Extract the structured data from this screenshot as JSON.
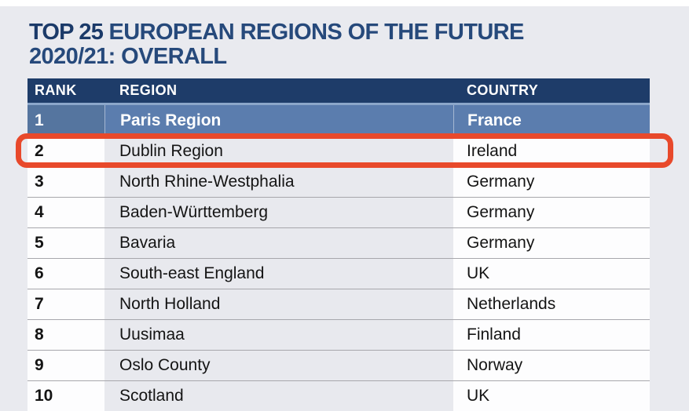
{
  "title": {
    "bold": "TOP 25",
    "line1_rest": " EUROPEAN REGIONS OF THE FUTURE",
    "line2": "2020/21: OVERALL",
    "full": "TOP 25 EUROPEAN REGIONS OF THE FUTURE 2020/21: OVERALL"
  },
  "table": {
    "headers": {
      "rank": "RANK",
      "region": "REGION",
      "country": "COUNTRY"
    },
    "rows": [
      {
        "rank": "1",
        "region": "Paris Region",
        "country": "France"
      },
      {
        "rank": "2",
        "region": "Dublin Region",
        "country": "Ireland"
      },
      {
        "rank": "3",
        "region": "North Rhine-Westphalia",
        "country": "Germany"
      },
      {
        "rank": "4",
        "region": "Baden-Württemberg",
        "country": "Germany"
      },
      {
        "rank": "5",
        "region": "Bavaria",
        "country": "Germany"
      },
      {
        "rank": "6",
        "region": "South-east England",
        "country": "UK"
      },
      {
        "rank": "7",
        "region": "North Holland",
        "country": "Netherlands"
      },
      {
        "rank": "8",
        "region": "Uusimaa",
        "country": "Finland"
      },
      {
        "rank": "9",
        "region": "Oslo County",
        "country": "Norway"
      },
      {
        "rank": "10",
        "region": "Scotland",
        "country": "UK"
      }
    ]
  },
  "highlight": {
    "shape": "rounded-rectangle",
    "highlighted_rank": "2",
    "highlighted_region": "Dublin Region",
    "highlighted_country": "Ireland"
  },
  "colors": {
    "page-bg": "#e9eaef",
    "top-strip": "#ffffff",
    "title-navy": "#26497b",
    "title-bold-navy": "#1b3a69",
    "header-bg": "#1e3c69",
    "header-divider": "#8ba6ca",
    "top-row-bg": "#5b7dae",
    "top-row-rank-bg": "#55759f",
    "row-bg": "#fdfdfe",
    "region-col-bg": "#e8e9ee",
    "separator": "#a7a7ac",
    "text": "#141414",
    "highlight-red": "#e8492b"
  },
  "chart_data": {
    "type": "table",
    "title": "TOP 25 EUROPEAN REGIONS OF THE FUTURE 2020/21: OVERALL",
    "columns": [
      "RANK",
      "REGION",
      "COUNTRY"
    ],
    "rows": [
      [
        1,
        "Paris Region",
        "France"
      ],
      [
        2,
        "Dublin Region",
        "Ireland"
      ],
      [
        3,
        "North Rhine-Westphalia",
        "Germany"
      ],
      [
        4,
        "Baden-Württemberg",
        "Germany"
      ],
      [
        5,
        "Bavaria",
        "Germany"
      ],
      [
        6,
        "South-east England",
        "UK"
      ],
      [
        7,
        "North Holland",
        "Netherlands"
      ],
      [
        8,
        "Uusimaa",
        "Finland"
      ],
      [
        9,
        "Oslo County",
        "Norway"
      ],
      [
        10,
        "Scotland",
        "UK"
      ]
    ],
    "visible_rows": 10,
    "annotation": "Row for rank 2 (Dublin Region, Ireland) is circled with a red rounded rectangle"
  }
}
